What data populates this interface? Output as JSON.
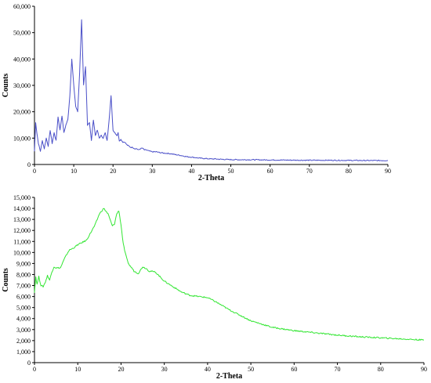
{
  "chart_data": [
    {
      "type": "line",
      "xlabel": "2-Theta",
      "ylabel": "Counts",
      "xlim": [
        0,
        90
      ],
      "ylim": [
        0,
        60000
      ],
      "x_ticks": [
        "0",
        "10",
        "20",
        "30",
        "40",
        "50",
        "60",
        "70",
        "80",
        "90"
      ],
      "y_ticks": [
        "0",
        "10,000",
        "20,000",
        "30,000",
        "40,000",
        "50,000",
        "60,000"
      ],
      "grid": false,
      "color": "#4a4fc8",
      "series": [
        {
          "x": [
            0,
            0.3,
            0.6,
            1.0,
            1.5,
            2.0,
            2.5,
            3.0,
            3.5,
            4.0,
            4.5,
            5.0,
            5.5,
            6.0,
            6.5,
            7.0,
            7.5,
            8.0,
            8.5,
            9.0,
            9.5,
            10.0,
            10.5,
            11.0,
            11.5,
            12.0,
            12.5,
            13.0,
            13.5,
            14.0,
            14.5,
            15.0,
            15.5,
            16.0,
            16.5,
            17.0,
            17.5,
            18.0,
            18.5,
            19.0,
            19.5,
            20.0,
            20.5,
            21.0,
            21.3,
            21.6,
            22.0,
            22.5,
            23.0,
            23.5,
            24.0,
            24.5,
            25.0,
            25.5,
            26.0,
            26.5,
            27.0,
            27.5,
            28.0,
            28.5,
            29.0,
            30.0,
            31.0,
            32.0,
            33.0,
            34.0,
            35.0,
            36.0,
            37.0,
            38.0,
            39.0,
            40.0,
            41.0,
            42.0,
            43.0,
            44.0,
            45.0,
            46.0,
            47.0,
            48.0,
            49.0,
            50.0,
            52.0,
            55.0,
            58.0,
            60.0,
            62.0,
            65.0,
            70.0,
            75.0,
            80.0,
            85.0,
            90.0
          ],
          "y": [
            5000,
            16000,
            12000,
            8000,
            5000,
            9000,
            6000,
            10000,
            7000,
            13000,
            8000,
            12000,
            9000,
            18000,
            13000,
            18500,
            12000,
            15000,
            17000,
            26000,
            40000,
            30000,
            22000,
            20000,
            35000,
            55000,
            30000,
            37000,
            15000,
            16000,
            9000,
            17000,
            11000,
            13000,
            10000,
            11000,
            10000,
            12000,
            9000,
            17000,
            26000,
            13000,
            12000,
            11000,
            12000,
            9000,
            9500,
            8500,
            8500,
            7500,
            7000,
            6500,
            6500,
            6000,
            6000,
            5500,
            6000,
            6200,
            5500,
            5500,
            5200,
            4800,
            4800,
            4500,
            4300,
            4200,
            4000,
            3700,
            3500,
            3200,
            2900,
            2800,
            2600,
            2400,
            2300,
            2200,
            2100,
            2100,
            2000,
            1950,
            1900,
            1850,
            1800,
            1800,
            1750,
            1700,
            1700,
            1650,
            1600,
            1600,
            1550,
            1500,
            1500
          ]
        }
      ]
    },
    {
      "type": "line",
      "xlabel": "2-Theta",
      "ylabel": "Counts",
      "xlim": [
        0,
        90
      ],
      "ylim": [
        0,
        15000
      ],
      "x_ticks": [
        "0",
        "10",
        "20",
        "30",
        "40",
        "50",
        "60",
        "70",
        "80",
        "90"
      ],
      "y_ticks": [
        "0",
        "1,000",
        "2,000",
        "3,000",
        "4,000",
        "5,000",
        "6,000",
        "7,000",
        "8,000",
        "9,000",
        "10,000",
        "11,000",
        "12,000",
        "13,000",
        "14,000",
        "15,000"
      ],
      "grid": false,
      "color": "#33e633",
      "series": [
        {
          "x": [
            0,
            0.3,
            0.6,
            1.0,
            1.5,
            2.0,
            2.5,
            3.0,
            3.5,
            4.0,
            4.5,
            5.0,
            6.0,
            7.0,
            8.0,
            9.0,
            10.0,
            11.0,
            12.0,
            13.0,
            14.0,
            15.0,
            16.0,
            17.0,
            18.0,
            18.5,
            19.0,
            19.5,
            20.0,
            20.5,
            21.0,
            21.5,
            22.0,
            22.5,
            23.0,
            24.0,
            25.0,
            26.0,
            26.5,
            27.0,
            28.0,
            29.0,
            30.0,
            32.0,
            34.0,
            36.0,
            38.0,
            40.0,
            42.0,
            45.0,
            50.0,
            55.0,
            60.0,
            65.0,
            70.0,
            75.0,
            80.0,
            85.0,
            90.0
          ],
          "y": [
            6400,
            7800,
            7100,
            7800,
            7000,
            6900,
            7300,
            7900,
            7500,
            8200,
            8700,
            8600,
            8600,
            9500,
            10200,
            10400,
            10700,
            10900,
            11100,
            11800,
            12500,
            13500,
            14000,
            13500,
            12400,
            12600,
            13500,
            13800,
            12500,
            10800,
            9900,
            9200,
            8800,
            8600,
            8300,
            8100,
            8700,
            8500,
            8300,
            8300,
            8200,
            7800,
            7400,
            6900,
            6400,
            6100,
            6000,
            5900,
            5500,
            4800,
            3800,
            3200,
            2900,
            2700,
            2500,
            2350,
            2250,
            2150,
            2050
          ]
        }
      ]
    }
  ]
}
